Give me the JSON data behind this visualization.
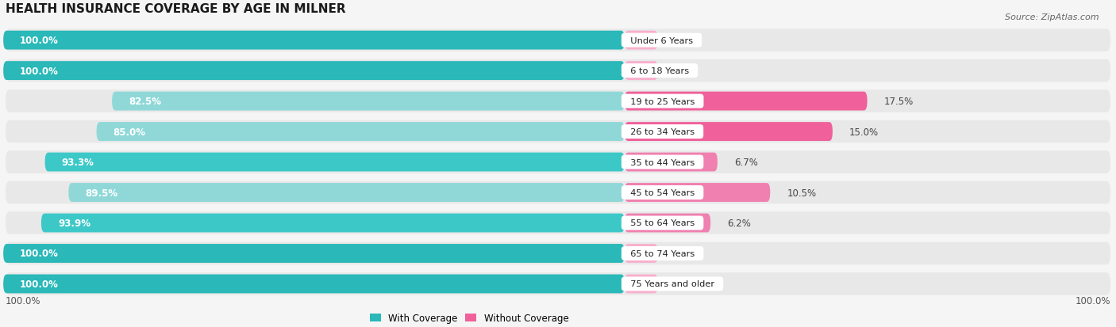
{
  "title": "HEALTH INSURANCE COVERAGE BY AGE IN MILNER",
  "source": "Source: ZipAtlas.com",
  "categories": [
    "Under 6 Years",
    "6 to 18 Years",
    "19 to 25 Years",
    "26 to 34 Years",
    "35 to 44 Years",
    "45 to 54 Years",
    "55 to 64 Years",
    "65 to 74 Years",
    "75 Years and older"
  ],
  "with_coverage": [
    100.0,
    100.0,
    82.5,
    85.0,
    93.3,
    89.5,
    93.9,
    100.0,
    100.0
  ],
  "without_coverage": [
    0.0,
    0.0,
    17.5,
    15.0,
    6.7,
    10.5,
    6.2,
    0.0,
    0.0
  ],
  "color_with_100": "#2ab8b8",
  "color_with_high": "#3dc8c8",
  "color_with_low": "#90d8d8",
  "color_without_high": "#f0609a",
  "color_without_med": "#f080b0",
  "color_without_low": "#f8b0cc",
  "color_row_bg": "#e8e8e8",
  "color_bg_fig": "#f5f5f5",
  "title_fontsize": 11,
  "label_fontsize": 8.5,
  "tick_fontsize": 8.5,
  "source_fontsize": 8
}
